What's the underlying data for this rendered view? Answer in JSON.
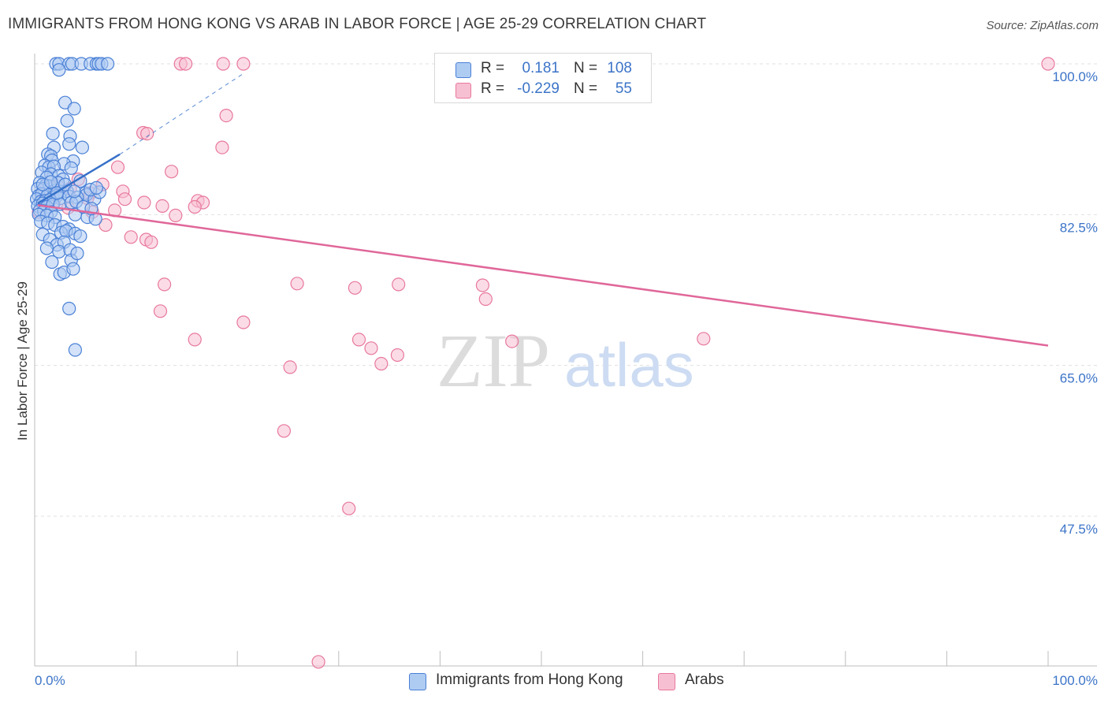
{
  "title": "IMMIGRANTS FROM HONG KONG VS ARAB IN LABOR FORCE | AGE 25-29 CORRELATION CHART",
  "source": "Source: ZipAtlas.com",
  "watermark": {
    "zip": "ZIP",
    "atlas": "atlas"
  },
  "colors": {
    "blue_fill": "#aecbf2",
    "blue_stroke": "#4a80d6",
    "blue_line": "#3570c9",
    "pink_fill": "#f7c0d2",
    "pink_stroke": "#e8789c",
    "pink_line": "#e0679a",
    "tick_label": "#3c74c8",
    "grid": "#e0e0e0"
  },
  "legend": {
    "rows": [
      {
        "r_label": "R =",
        "r_value": "0.181",
        "n_label": "N =",
        "n_value": "108"
      },
      {
        "r_label": "R =",
        "r_value": "-0.229",
        "n_label": "N =",
        "n_value": "55"
      }
    ]
  },
  "bottom_legend": [
    {
      "label": "Immigrants from Hong Kong"
    },
    {
      "label": "Arabs"
    }
  ],
  "chart_data": {
    "type": "scatter",
    "title": "IMMIGRANTS FROM HONG KONG VS ARAB IN LABOR FORCE | AGE 25-29 CORRELATION CHART",
    "xlabel": "",
    "ylabel": "In Labor Force | Age 25-29",
    "xlim": [
      0,
      100
    ],
    "ylim": [
      30,
      102
    ],
    "x_tick_labels": [
      {
        "value": 0,
        "label": "0.0%"
      },
      {
        "value": 100,
        "label": "100.0%"
      }
    ],
    "y_tick_labels": [
      {
        "value": 100.0,
        "label": "100.0%"
      },
      {
        "value": 82.5,
        "label": "82.5%"
      },
      {
        "value": 65.0,
        "label": "65.0%"
      },
      {
        "value": 47.5,
        "label": "47.5%"
      }
    ],
    "grid": true,
    "legend_position": "top-center",
    "series": [
      {
        "name": "Immigrants from Hong Kong",
        "color": "#4a80d6",
        "trend": {
          "x": [
            0.3,
            8.4
          ],
          "y": [
            83.8,
            89.5
          ],
          "dashed_extension_to": [
            20.5,
            98.8
          ]
        },
        "points": [
          [
            2.1,
            100
          ],
          [
            2.4,
            100
          ],
          [
            3.4,
            100
          ],
          [
            3.7,
            100
          ],
          [
            4.6,
            100
          ],
          [
            5.5,
            100
          ],
          [
            6.1,
            100
          ],
          [
            6.3,
            100
          ],
          [
            6.6,
            100
          ],
          [
            7.2,
            100
          ],
          [
            2.4,
            99.3
          ],
          [
            3.0,
            95.5
          ],
          [
            3.9,
            94.8
          ],
          [
            3.2,
            93.4
          ],
          [
            1.8,
            91.9
          ],
          [
            3.5,
            91.6
          ],
          [
            3.4,
            90.7
          ],
          [
            1.9,
            90.3
          ],
          [
            4.7,
            90.3
          ],
          [
            1.3,
            89.5
          ],
          [
            1.6,
            89.3
          ],
          [
            1.7,
            88.8
          ],
          [
            3.8,
            88.7
          ],
          [
            2.9,
            88.4
          ],
          [
            1.0,
            88.2
          ],
          [
            1.4,
            88.0
          ],
          [
            1.9,
            88.1
          ],
          [
            3.6,
            87.9
          ],
          [
            0.7,
            87.4
          ],
          [
            1.6,
            87.2
          ],
          [
            2.4,
            87.0
          ],
          [
            2.8,
            86.6
          ],
          [
            1.2,
            86.8
          ],
          [
            0.5,
            86.2
          ],
          [
            1.1,
            85.9
          ],
          [
            1.5,
            85.8
          ],
          [
            0.3,
            85.5
          ],
          [
            0.9,
            85.5
          ],
          [
            2.0,
            85.3
          ],
          [
            2.6,
            85.1
          ],
          [
            3.2,
            85.2
          ],
          [
            5.0,
            85.0
          ],
          [
            5.1,
            84.8
          ],
          [
            0.4,
            84.7
          ],
          [
            0.7,
            84.9
          ],
          [
            1.3,
            84.8
          ],
          [
            1.8,
            84.5
          ],
          [
            2.2,
            84.7
          ],
          [
            2.5,
            84.4
          ],
          [
            3.4,
            84.6
          ],
          [
            0.2,
            84.3
          ],
          [
            0.6,
            84.0
          ],
          [
            1.0,
            84.1
          ],
          [
            1.5,
            84.2
          ],
          [
            4.2,
            84.5
          ],
          [
            5.9,
            84.3
          ],
          [
            6.4,
            85.1
          ],
          [
            5.5,
            85.4
          ],
          [
            0.3,
            83.5
          ],
          [
            0.8,
            83.8
          ],
          [
            1.2,
            83.4
          ],
          [
            1.8,
            83.7
          ],
          [
            2.5,
            83.7
          ],
          [
            3.6,
            83.9
          ],
          [
            4.1,
            84.0
          ],
          [
            0.5,
            83.0
          ],
          [
            0.9,
            82.9
          ],
          [
            1.6,
            82.8
          ],
          [
            0.4,
            82.5
          ],
          [
            1.2,
            82.4
          ],
          [
            2.0,
            82.2
          ],
          [
            4.0,
            82.5
          ],
          [
            5.2,
            82.2
          ],
          [
            6.0,
            82.0
          ],
          [
            0.6,
            81.7
          ],
          [
            1.3,
            81.5
          ],
          [
            2.0,
            81.3
          ],
          [
            2.8,
            81.1
          ],
          [
            3.4,
            80.8
          ],
          [
            0.8,
            80.2
          ],
          [
            2.6,
            80.4
          ],
          [
            3.1,
            80.6
          ],
          [
            4.0,
            80.3
          ],
          [
            4.5,
            80.0
          ],
          [
            1.5,
            79.6
          ],
          [
            2.2,
            79.0
          ],
          [
            2.9,
            79.3
          ],
          [
            1.2,
            78.6
          ],
          [
            2.4,
            78.2
          ],
          [
            3.5,
            78.4
          ],
          [
            1.7,
            77.0
          ],
          [
            2.5,
            75.6
          ],
          [
            2.9,
            75.8
          ],
          [
            3.6,
            77.2
          ],
          [
            4.2,
            78.0
          ],
          [
            3.8,
            76.2
          ],
          [
            3.4,
            71.6
          ],
          [
            4.0,
            66.8
          ],
          [
            2.3,
            86.2
          ],
          [
            3.0,
            86.0
          ],
          [
            4.5,
            86.4
          ],
          [
            6.1,
            85.6
          ],
          [
            0.8,
            86.0
          ],
          [
            1.6,
            86.3
          ],
          [
            2.2,
            85.0
          ],
          [
            3.9,
            85.2
          ],
          [
            4.8,
            83.4
          ],
          [
            5.6,
            83.2
          ]
        ]
      },
      {
        "name": "Arabs",
        "color": "#e8789c",
        "trend": {
          "x": [
            0.3,
            100
          ],
          "y": [
            83.6,
            67.3
          ]
        },
        "points": [
          [
            14.4,
            100
          ],
          [
            14.9,
            100
          ],
          [
            18.6,
            100
          ],
          [
            20.6,
            100
          ],
          [
            100,
            100
          ],
          [
            18.9,
            94.0
          ],
          [
            10.7,
            92.0
          ],
          [
            11.1,
            91.9
          ],
          [
            18.5,
            90.3
          ],
          [
            8.2,
            88.0
          ],
          [
            13.5,
            87.5
          ],
          [
            4.3,
            86.6
          ],
          [
            6.7,
            86.0
          ],
          [
            2.3,
            85.8
          ],
          [
            3.5,
            85.5
          ],
          [
            8.7,
            85.2
          ],
          [
            1.0,
            85.3
          ],
          [
            5.5,
            85.0
          ],
          [
            1.6,
            84.9
          ],
          [
            8.9,
            84.3
          ],
          [
            10.8,
            83.9
          ],
          [
            12.6,
            83.5
          ],
          [
            16.1,
            84.1
          ],
          [
            16.6,
            83.9
          ],
          [
            15.8,
            83.4
          ],
          [
            7.9,
            83.0
          ],
          [
            3.3,
            83.3
          ],
          [
            0.4,
            82.8
          ],
          [
            5.7,
            82.8
          ],
          [
            13.9,
            82.4
          ],
          [
            7.0,
            81.3
          ],
          [
            1.9,
            83.8
          ],
          [
            9.5,
            79.9
          ],
          [
            11.0,
            79.6
          ],
          [
            11.5,
            79.3
          ],
          [
            12.8,
            74.4
          ],
          [
            12.4,
            71.3
          ],
          [
            25.9,
            74.5
          ],
          [
            31.6,
            74.0
          ],
          [
            35.9,
            74.4
          ],
          [
            44.2,
            74.3
          ],
          [
            44.5,
            72.7
          ],
          [
            20.6,
            70.0
          ],
          [
            15.8,
            68.0
          ],
          [
            32.0,
            68.0
          ],
          [
            34.2,
            65.2
          ],
          [
            35.8,
            66.2
          ],
          [
            47.1,
            67.8
          ],
          [
            66.0,
            68.1
          ],
          [
            25.2,
            64.8
          ],
          [
            24.6,
            57.4
          ],
          [
            31.0,
            48.4
          ],
          [
            33.2,
            67.0
          ],
          [
            28.0,
            30.6
          ],
          [
            5.2,
            84.4
          ]
        ]
      }
    ]
  }
}
